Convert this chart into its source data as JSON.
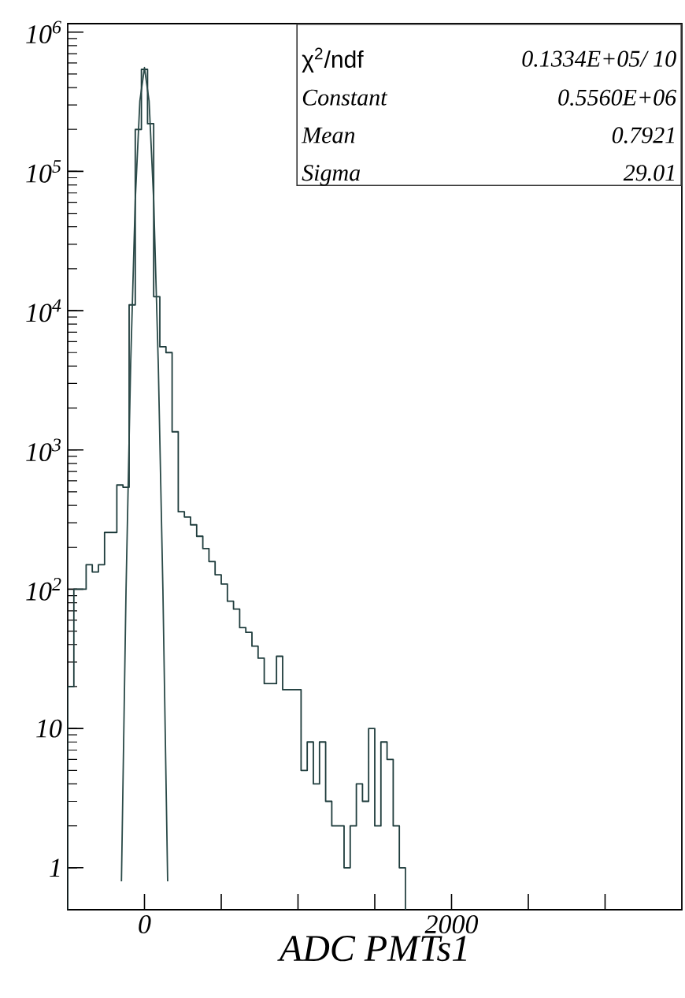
{
  "chart_data": {
    "type": "histogram",
    "xlabel": "ADC PMTs1",
    "log": "y",
    "grid": false,
    "marker": "none",
    "xlim": [
      -500,
      3500
    ],
    "ylim": [
      0.5,
      1150000
    ],
    "xticks": [
      {
        "value": 0,
        "label": "0"
      },
      {
        "value": 500,
        "label": null
      },
      {
        "value": 1000,
        "label": null
      },
      {
        "value": 1500,
        "label": null
      },
      {
        "value": 2000,
        "label": "2000"
      },
      {
        "value": 2500,
        "label": null
      },
      {
        "value": 3000,
        "label": null
      }
    ],
    "yticks": [
      {
        "value": 1,
        "label": "1"
      },
      {
        "value": 10,
        "label": "10"
      },
      {
        "value": 100,
        "label": "10$^{2}$"
      },
      {
        "value": 1000,
        "label": "10$^{3}$"
      },
      {
        "value": 10000,
        "label": "10$^{4}$"
      },
      {
        "value": 100000,
        "label": "10$^{5}$"
      },
      {
        "value": 1000000,
        "label": "10$^{6}$"
      }
    ],
    "series": [
      {
        "color": "#1e3c3c",
        "bins": [
          -500,
          -460,
          -420,
          -380,
          -340,
          -300,
          -260,
          -220,
          -180,
          -140,
          -100,
          -60,
          -20,
          20,
          60,
          100,
          140,
          180,
          220,
          260,
          300,
          340,
          380,
          420,
          460,
          500,
          540,
          580,
          620,
          660,
          700,
          740,
          780,
          820,
          860,
          900,
          940,
          980,
          1020,
          1060,
          1100,
          1140,
          1180,
          1220,
          1260,
          1300,
          1340,
          1380,
          1420,
          1460,
          1500,
          1540,
          1580,
          1620,
          1660,
          1700
        ],
        "values": [
          20,
          100,
          100,
          150,
          133,
          150,
          256,
          256,
          560,
          540,
          11000,
          200000,
          540000,
          220000,
          12600,
          5500,
          5000,
          1350,
          360,
          330,
          290,
          240,
          196,
          158,
          127,
          109,
          82,
          72,
          53,
          49,
          39,
          32,
          21,
          21,
          33,
          19,
          19,
          19,
          5,
          8,
          4,
          8,
          3,
          2,
          2,
          1,
          2,
          4,
          3,
          10,
          2,
          8,
          6,
          2,
          1
        ]
      },
      {
        "type": "line",
        "color": "#2a4a48",
        "x": [
          -150,
          -120,
          -90,
          -60,
          -30,
          0,
          30,
          60,
          90,
          120,
          151
        ],
        "values": [
          0.8,
          100,
          4100,
          62000,
          320000,
          556000,
          320000,
          62000,
          4100,
          100,
          0.8
        ]
      }
    ],
    "annotations": [
      "χ$^{2}$/ndf",
      "0.1334E+05/   10",
      "Constant",
      "0.5560E+06",
      "Mean",
      "0.7921",
      "Sigma",
      "29.01"
    ]
  }
}
